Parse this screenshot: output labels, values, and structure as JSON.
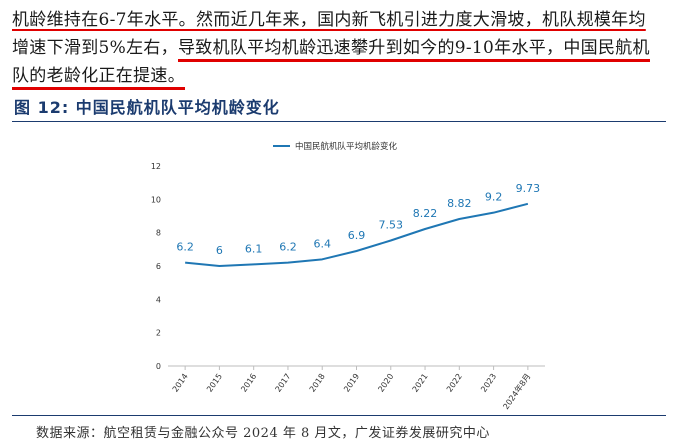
{
  "paragraph": {
    "line1": "机龄维持在6-7年水平。然而近几年来，国内新飞机引进力度大滑坡，机队规模年均",
    "line2_a": "增速下滑到5%左右，",
    "line2_b": "导致机队平均机龄迅速攀升到如今的9-10年水平，中国民航机",
    "line3": "队的老龄化正在提速。"
  },
  "figure": {
    "title": "图 12:  中国民航机队平均机龄变化",
    "source": "数据来源：航空租赁与金融公众号 2024 年 8 月文，广发证券发展研究中心"
  },
  "colors": {
    "series": "#1f77b4",
    "accent_underline": "#e00000",
    "title": "#1b3b6f"
  },
  "chart_data": {
    "type": "line",
    "title": "",
    "xlabel": "",
    "ylabel": "",
    "ylim": [
      0,
      12
    ],
    "yticks": [
      0,
      2,
      4,
      6,
      8,
      10,
      12
    ],
    "grid": false,
    "legend_position": "top-center",
    "categories": [
      "2014",
      "2015",
      "2016",
      "2017",
      "2018",
      "2019",
      "2020",
      "2021",
      "2022",
      "2023",
      "2024年8月"
    ],
    "series": [
      {
        "name": "中国民航机队平均机龄变化",
        "values": [
          6.2,
          6,
          6.1,
          6.2,
          6.4,
          6.9,
          7.53,
          8.22,
          8.82,
          9.2,
          9.73
        ]
      }
    ]
  }
}
